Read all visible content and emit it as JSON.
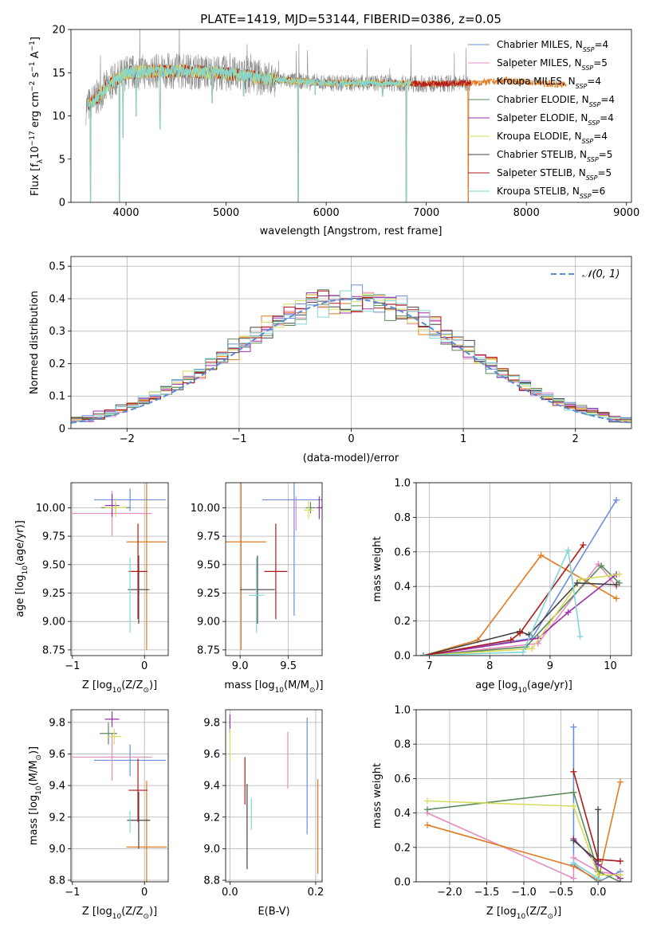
{
  "title": "PLATE=1419, MJD=53144, FIBERID=0386, z=0.05",
  "colors": {
    "Chabrier MILES": "#6a8ed8",
    "Salpeter MILES": "#e58bc0",
    "Kroupa MILES": "#e07b20",
    "Chabrier ELODIE": "#5b8a5b",
    "Salpeter ELODIE": "#9a2fa8",
    "Kroupa ELODIE": "#d6dc5a",
    "Chabrier STELIB": "#444444",
    "Salpeter STELIB": "#b01818",
    "Kroupa STELIB": "#7fd6d8",
    "spectrum": "#8c8c8c",
    "normal_curve": "#5b8ad6"
  },
  "chart_data": [
    {
      "id": "spectrum",
      "type": "line",
      "xlabel": "wavelength [Angstrom, rest frame]",
      "ylabel_parts": [
        "Flux [f",
        "λ",
        "10",
        "−17",
        " erg cm",
        "−2",
        " s",
        "−1",
        " A",
        "−1",
        "]"
      ],
      "xlim": [
        3450,
        9050
      ],
      "ylim": [
        0,
        20
      ],
      "xticks": [
        4000,
        5000,
        6000,
        7000,
        8000,
        9000
      ],
      "yticks": [
        0,
        5,
        10,
        15,
        20
      ],
      "legend": [
        {
          "label": "Chabrier MILES",
          "nssp": "4",
          "color": "#6a8ed8"
        },
        {
          "label": "Salpeter MILES",
          "nssp": "5",
          "color": "#e58bc0"
        },
        {
          "label": "Kroupa MILES",
          "nssp": "4",
          "color": "#e07b20"
        },
        {
          "label": "Chabrier ELODIE",
          "nssp": "4",
          "color": "#5b8a5b"
        },
        {
          "label": "Salpeter ELODIE",
          "nssp": "4",
          "color": "#9a2fa8"
        },
        {
          "label": "Kroupa ELODIE",
          "nssp": "4",
          "color": "#d6dc5a"
        },
        {
          "label": "Chabrier STELIB",
          "nssp": "5",
          "color": "#444444"
        },
        {
          "label": "Salpeter STELIB",
          "nssp": "5",
          "color": "#b01818"
        },
        {
          "label": "Kroupa STELIB",
          "nssp": "6",
          "color": "#7fd6d8"
        }
      ],
      "legend_placement": "upper right",
      "continuum": [
        [
          3600,
          11.0
        ],
        [
          3700,
          12.0
        ],
        [
          3850,
          13.8
        ],
        [
          4000,
          15.0
        ],
        [
          4300,
          15.2
        ],
        [
          4600,
          15.2
        ],
        [
          5000,
          14.9
        ],
        [
          5500,
          14.2
        ],
        [
          6000,
          13.8
        ],
        [
          6500,
          13.8
        ],
        [
          7000,
          13.7
        ],
        [
          7500,
          13.8
        ],
        [
          7800,
          14.1
        ],
        [
          8000,
          13.9
        ],
        [
          8400,
          13.6
        ],
        [
          8800,
          13.4
        ],
        [
          8950,
          13.4
        ]
      ],
      "absorption_features": [
        [
          3646,
          0
        ],
        [
          3934,
          0
        ],
        [
          3970,
          7.5
        ],
        [
          4101,
          10.0
        ],
        [
          4340,
          8.5
        ],
        [
          4861,
          11.5
        ],
        [
          5175,
          12.3
        ],
        [
          5720,
          0
        ],
        [
          5890,
          12.5
        ],
        [
          6563,
          12.3
        ],
        [
          6800,
          0
        ],
        [
          7420,
          0
        ]
      ]
    },
    {
      "id": "residuals",
      "type": "histogram",
      "xlabel": "(data-model)/error",
      "ylabel": "Normed distribution",
      "xlim": [
        -2.5,
        2.5
      ],
      "ylim": [
        0,
        0.53
      ],
      "xticks": [
        -2,
        -1,
        0,
        1,
        2
      ],
      "yticks": [
        0,
        0.1,
        0.2,
        0.3,
        0.4,
        0.5
      ],
      "bin_width": 0.1,
      "legend": [
        {
          "label": "𝒩(0, 1)",
          "style": "dashed",
          "color": "#5b8ad6"
        }
      ],
      "legend_placement": "upper right",
      "grid": true
    },
    {
      "id": "age-vs-Z",
      "type": "errorbar",
      "xlabel_parts": [
        "Z [log",
        "10",
        "(Z/Z",
        "⊙",
        ")]"
      ],
      "ylabel_parts": [
        "age  [log",
        "10",
        "(age/yr)]"
      ],
      "xlim": [
        -1.02,
        0.33
      ],
      "ylim": [
        8.7,
        10.22
      ],
      "xticks": [
        -1,
        0
      ],
      "yticks": [
        8.75,
        9.0,
        9.25,
        9.5,
        9.75,
        10.0
      ],
      "ytick_labels": [
        "8.75",
        "9.00",
        "9.25",
        "9.50",
        "9.75",
        "10.00"
      ],
      "grid": true,
      "points": [
        {
          "model": "Chabrier MILES",
          "x": -0.2,
          "xerr": 0.5,
          "y": 10.07,
          "yerr": 0.1
        },
        {
          "model": "Salpeter MILES",
          "x": -0.45,
          "xerr": 0.55,
          "y": 9.95,
          "yerr": 0.2
        },
        {
          "model": "Kroupa MILES",
          "x": 0.03,
          "xerr": 0.28,
          "y": 9.7,
          "yerr": 0.95
        },
        {
          "model": "Chabrier ELODIE",
          "x": -0.4,
          "xerr": 0.2,
          "y": 10.0,
          "yerr": 0.05
        },
        {
          "model": "Salpeter ELODIE",
          "x": -0.45,
          "xerr": 0.1,
          "y": 10.02,
          "yerr": 0.1
        },
        {
          "model": "Kroupa ELODIE",
          "x": -0.4,
          "xerr": 0.15,
          "y": 10.0,
          "yerr": 0.08
        },
        {
          "model": "Chabrier STELIB",
          "x": -0.08,
          "xerr": 0.15,
          "y": 9.28,
          "yerr": 0.3
        },
        {
          "model": "Salpeter STELIB",
          "x": -0.09,
          "xerr": 0.13,
          "y": 9.44,
          "yerr": 0.42
        },
        {
          "model": "Kroupa STELIB",
          "x": -0.2,
          "xerr": 0.0,
          "y": 9.23,
          "yerr": 0.33
        }
      ]
    },
    {
      "id": "age-vs-mass",
      "type": "errorbar",
      "xlabel_parts": [
        "mass [log",
        "10",
        "(M/M",
        "⊙",
        ")]"
      ],
      "xlim": [
        8.85,
        9.85
      ],
      "ylim": [
        8.7,
        10.22
      ],
      "xticks": [
        9.0,
        9.5
      ],
      "xtick_labels": [
        "9.0",
        "9.5"
      ],
      "yticks": [
        8.75,
        9.0,
        9.25,
        9.5,
        9.75,
        10.0
      ],
      "ytick_labels": [
        "8.75",
        "9.00",
        "9.25",
        "9.50",
        "9.75",
        "10.00"
      ],
      "grid": true,
      "points": [
        {
          "model": "Chabrier MILES",
          "x": 9.56,
          "xerr": 0.33,
          "y": 10.07,
          "yerr": 1.02
        },
        {
          "model": "Salpeter MILES",
          "x": 9.58,
          "xerr": 0.0,
          "y": 9.95,
          "yerr": 0.15
        },
        {
          "model": "Kroupa MILES",
          "x": 9.01,
          "xerr": 0.26,
          "y": 9.7,
          "yerr": 0.95
        },
        {
          "model": "Chabrier ELODIE",
          "x": 9.73,
          "xerr": 0.05,
          "y": 10.0,
          "yerr": 0.05
        },
        {
          "model": "Salpeter ELODIE",
          "x": 9.82,
          "xerr": 0.03,
          "y": 10.0,
          "yerr": 0.1
        },
        {
          "model": "Kroupa ELODIE",
          "x": 9.71,
          "xerr": 0.05,
          "y": 9.98,
          "yerr": 0.08
        },
        {
          "model": "Chabrier STELIB",
          "x": 9.18,
          "xerr": 0.18,
          "y": 9.28,
          "yerr": 0.3
        },
        {
          "model": "Salpeter STELIB",
          "x": 9.37,
          "xerr": 0.12,
          "y": 9.44,
          "yerr": 0.42
        },
        {
          "model": "Kroupa STELIB",
          "x": 9.17,
          "xerr": 0.08,
          "y": 9.23,
          "yerr": 0.33
        }
      ]
    },
    {
      "id": "massweight-vs-age",
      "type": "line",
      "xlabel_parts": [
        "age  [log",
        "10",
        "(age/yr)]"
      ],
      "ylabel": "mass weight",
      "xlim": [
        6.78,
        10.35
      ],
      "ylim": [
        0,
        1
      ],
      "xticks": [
        7,
        8,
        9,
        10
      ],
      "yticks": [
        0,
        0.2,
        0.4,
        0.6,
        0.8,
        1.0
      ],
      "ytick_labels": [
        "0.0",
        "0.2",
        "0.4",
        "0.6",
        "0.8",
        "1.0"
      ],
      "grid": true,
      "series": [
        {
          "model": "Chabrier MILES",
          "x": [
            6.9,
            8.7,
            10.1
          ],
          "y": [
            0.0,
            0.1,
            0.9
          ]
        },
        {
          "model": "Salpeter MILES",
          "x": [
            6.9,
            8.8,
            9.8,
            10.1
          ],
          "y": [
            0.0,
            0.07,
            0.53,
            0.4
          ]
        },
        {
          "model": "Kroupa MILES",
          "x": [
            6.9,
            7.8,
            8.85,
            10.1
          ],
          "y": [
            0.0,
            0.09,
            0.58,
            0.33
          ]
        },
        {
          "model": "Chabrier ELODIE",
          "x": [
            6.9,
            8.6,
            9.85,
            10.15
          ],
          "y": [
            0.0,
            0.05,
            0.52,
            0.42
          ]
        },
        {
          "model": "Salpeter ELODIE",
          "x": [
            6.9,
            8.8,
            9.3,
            10.1
          ],
          "y": [
            0.0,
            0.1,
            0.25,
            0.47
          ]
        },
        {
          "model": "Kroupa ELODIE",
          "x": [
            6.9,
            8.7,
            9.5,
            10.15
          ],
          "y": [
            0.0,
            0.04,
            0.44,
            0.47
          ]
        },
        {
          "model": "Chabrier STELIB",
          "x": [
            6.9,
            8.5,
            8.65,
            9.45,
            10.1
          ],
          "y": [
            0.0,
            0.14,
            0.12,
            0.42,
            0.41
          ]
        },
        {
          "model": "Salpeter STELIB",
          "x": [
            6.9,
            8.35,
            8.5,
            9.55
          ],
          "y": [
            0.0,
            0.09,
            0.13,
            0.64
          ]
        },
        {
          "model": "Kroupa STELIB",
          "x": [
            6.9,
            8.55,
            9.3,
            9.5
          ],
          "y": [
            0.0,
            0.02,
            0.61,
            0.11
          ]
        }
      ]
    },
    {
      "id": "mass-vs-Z",
      "type": "errorbar",
      "xlabel_parts": [
        "Z [log",
        "10",
        "(Z/Z",
        "⊙",
        ")]"
      ],
      "ylabel_parts": [
        "mass [log",
        "10",
        "(M/M",
        "⊙",
        ")]"
      ],
      "xlim": [
        -1.02,
        0.33
      ],
      "ylim": [
        8.79,
        9.88
      ],
      "xticks": [
        -1,
        0
      ],
      "yticks": [
        8.8,
        9.0,
        9.2,
        9.4,
        9.6,
        9.8
      ],
      "ytick_labels": [
        "8.8",
        "9.0",
        "9.2",
        "9.4",
        "9.6",
        "9.8"
      ],
      "grid": true,
      "points": [
        {
          "model": "Chabrier MILES",
          "x": -0.2,
          "xerr": 0.5,
          "y": 9.56,
          "yerr": 0.1
        },
        {
          "model": "Salpeter MILES",
          "x": -0.45,
          "xerr": 0.55,
          "y": 9.58,
          "yerr": 0.15
        },
        {
          "model": "Kroupa MILES",
          "x": 0.03,
          "xerr": 0.28,
          "y": 9.01,
          "yerr": 0.42
        },
        {
          "model": "Chabrier ELODIE",
          "x": -0.5,
          "xerr": 0.12,
          "y": 9.73,
          "yerr": 0.07
        },
        {
          "model": "Salpeter ELODIE",
          "x": -0.45,
          "xerr": 0.1,
          "y": 9.82,
          "yerr": 0.05
        },
        {
          "model": "Kroupa ELODIE",
          "x": -0.42,
          "xerr": 0.1,
          "y": 9.71,
          "yerr": 0.05
        },
        {
          "model": "Chabrier STELIB",
          "x": -0.08,
          "xerr": 0.16,
          "y": 9.18,
          "yerr": 0.18
        },
        {
          "model": "Salpeter STELIB",
          "x": -0.09,
          "xerr": 0.13,
          "y": 9.37,
          "yerr": 0.2
        },
        {
          "model": "Kroupa STELIB",
          "x": -0.2,
          "xerr": 0.0,
          "y": 9.17,
          "yerr": 0.07
        }
      ]
    },
    {
      "id": "mass-vs-ebv",
      "type": "errorbar",
      "xlabel": "E(B-V)",
      "xlim": [
        -0.01,
        0.215
      ],
      "ylim": [
        8.79,
        9.88
      ],
      "xticks": [
        0.0,
        0.2
      ],
      "xtick_labels": [
        "0.0",
        "0.2"
      ],
      "yticks": [
        8.8,
        9.0,
        9.2,
        9.4,
        9.6,
        9.8
      ],
      "ytick_labels": [
        "8.8",
        "9.0",
        "9.2",
        "9.4",
        "9.6",
        "9.8"
      ],
      "grid": true,
      "points": [
        {
          "model": "Chabrier MILES",
          "x": 0.18,
          "xerr": 0,
          "y": 9.46,
          "yerr": 0.37
        },
        {
          "model": "Salpeter MILES",
          "x": 0.135,
          "xerr": 0,
          "y": 9.56,
          "yerr": 0.18
        },
        {
          "model": "Kroupa MILES",
          "x": 0.205,
          "xerr": 0,
          "y": 9.14,
          "yerr": 0.3
        },
        {
          "model": "Salpeter ELODIE",
          "x": 0.0,
          "xerr": 0,
          "y": 9.79,
          "yerr": 0.06
        },
        {
          "model": "Kroupa ELODIE",
          "x": 0.0,
          "xerr": 0,
          "y": 9.66,
          "yerr": 0.1
        },
        {
          "model": "Chabrier STELIB",
          "x": 0.04,
          "xerr": 0,
          "y": 9.14,
          "yerr": 0.27
        },
        {
          "model": "Salpeter STELIB",
          "x": 0.035,
          "xerr": 0,
          "y": 9.43,
          "yerr": 0.15
        },
        {
          "model": "Kroupa STELIB",
          "x": 0.05,
          "xerr": 0,
          "y": 9.22,
          "yerr": 0.1
        }
      ]
    },
    {
      "id": "massweight-vs-Z",
      "type": "line",
      "xlabel_parts": [
        "Z [log",
        "10",
        "(Z/Z",
        "⊙",
        ")]"
      ],
      "ylabel": "mass weight",
      "xlim": [
        -2.45,
        0.45
      ],
      "ylim": [
        0,
        1
      ],
      "xticks": [
        -2.0,
        -1.5,
        -1.0,
        -0.5,
        0.0
      ],
      "xtick_labels": [
        "−2.0",
        "−1.5",
        "−1.0",
        "−0.5",
        "0.0"
      ],
      "yticks": [
        0,
        0.2,
        0.4,
        0.6,
        0.8,
        1.0
      ],
      "ytick_labels": [
        "0.0",
        "0.2",
        "0.4",
        "0.6",
        "0.8",
        "1.0"
      ],
      "grid": true,
      "series": [
        {
          "model": "Chabrier MILES",
          "x": [
            -0.33,
            -0.33,
            0.0,
            0.3
          ],
          "y": [
            0.9,
            0.1,
            0.0,
            0.06
          ]
        },
        {
          "model": "Salpeter MILES",
          "x": [
            -2.3,
            -0.33,
            -0.33,
            0.0,
            0.3
          ],
          "y": [
            0.4,
            0.02,
            0.14,
            0.06,
            0.04
          ]
        },
        {
          "model": "Kroupa MILES",
          "x": [
            -2.3,
            -0.33,
            0.0,
            0.3
          ],
          "y": [
            0.33,
            0.09,
            0.01,
            0.58
          ]
        },
        {
          "model": "Chabrier ELODIE",
          "x": [
            -2.3,
            -0.33,
            0.0,
            0.3
          ],
          "y": [
            0.42,
            0.52,
            0.06,
            0.0
          ]
        },
        {
          "model": "Salpeter ELODIE",
          "x": [
            -0.33,
            0.0,
            0.3
          ],
          "y": [
            0.25,
            0.1,
            0.02
          ]
        },
        {
          "model": "Kroupa ELODIE",
          "x": [
            -2.3,
            -0.33,
            0.0,
            0.3
          ],
          "y": [
            0.47,
            0.44,
            0.04,
            0.04
          ]
        },
        {
          "model": "Chabrier STELIB",
          "x": [
            -0.33,
            0.0,
            0.0
          ],
          "y": [
            0.24,
            0.12,
            0.42
          ]
        },
        {
          "model": "Salpeter STELIB",
          "x": [
            -0.33,
            0.0,
            0.3
          ],
          "y": [
            0.64,
            0.13,
            0.12
          ]
        },
        {
          "model": "Kroupa STELIB",
          "x": [
            -0.33,
            0.0,
            0.0
          ],
          "y": [
            0.11,
            0.02,
            0.0
          ]
        }
      ]
    }
  ]
}
